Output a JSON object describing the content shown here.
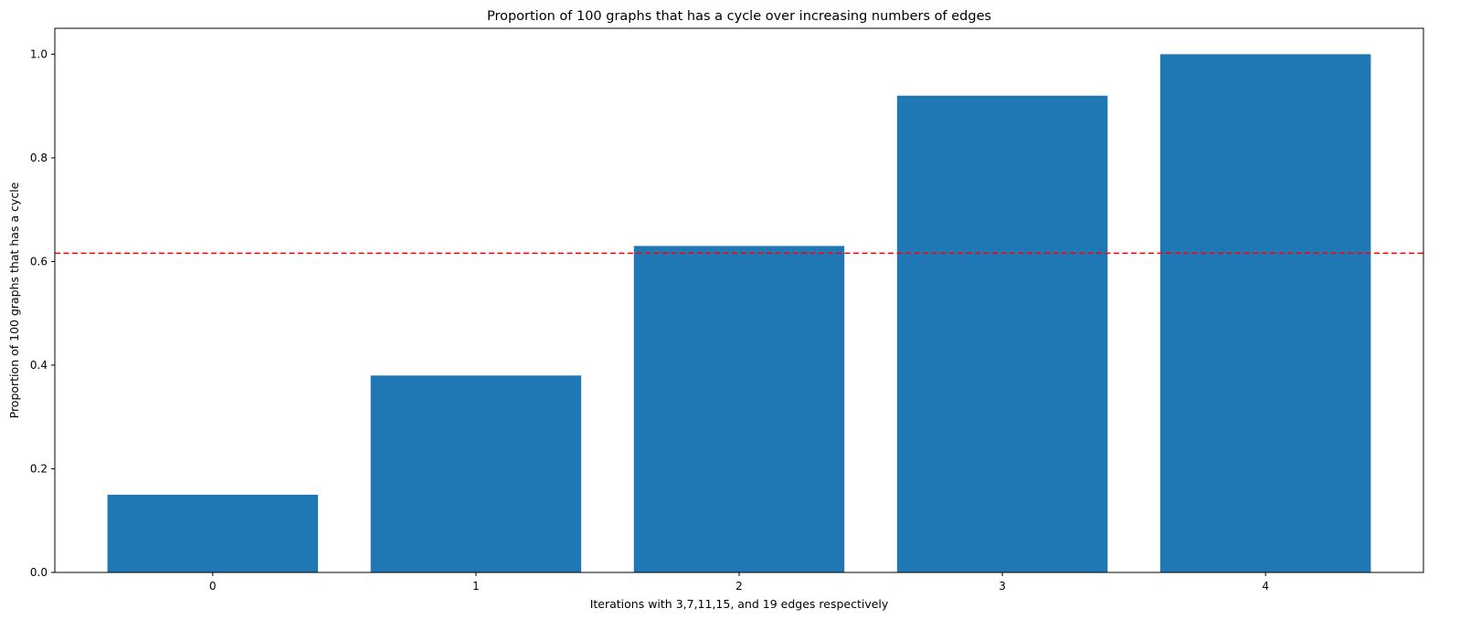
{
  "chart_data": {
    "type": "bar",
    "title": "Proportion of 100 graphs that has a cycle over increasing numbers of edges",
    "xlabel": "Iterations with 3,7,11,15, and 19 edges respectively",
    "ylabel": "Proportion of 100 graphs that has a cycle",
    "categories": [
      "0",
      "1",
      "2",
      "3",
      "4"
    ],
    "values": [
      0.15,
      0.38,
      0.63,
      0.92,
      1.0
    ],
    "ylim": [
      0,
      1.05
    ],
    "yticks": [
      0.0,
      0.2,
      0.4,
      0.6,
      0.8,
      1.0
    ],
    "ytick_labels": [
      "0.0",
      "0.2",
      "0.4",
      "0.6",
      "0.8",
      "1.0"
    ],
    "reference_line": {
      "y": 0.616,
      "color": "#ff0000",
      "style": "dashed"
    },
    "bar_color": "#1f77b4",
    "grid": false,
    "legend": "none"
  }
}
